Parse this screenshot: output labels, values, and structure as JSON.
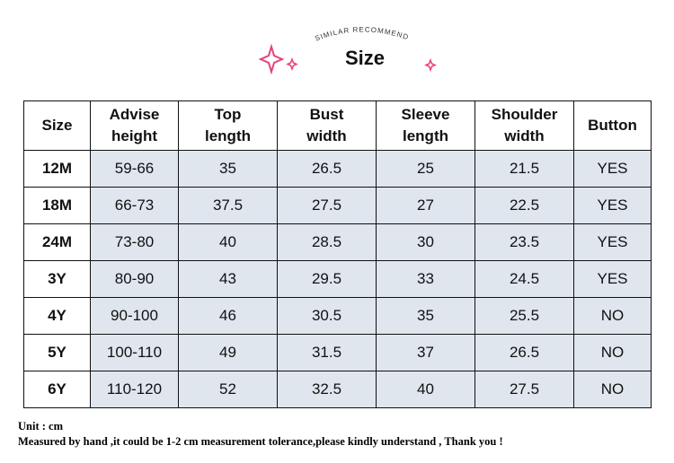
{
  "header": {
    "subtitle": "SIMILAR RECOMMEND",
    "title": "Size"
  },
  "table": {
    "columns": [
      "Size",
      "Advise\nheight",
      "Top\nlength",
      "Bust\nwidth",
      "Sleeve\nlength",
      "Shoulder\nwidth",
      "Button"
    ],
    "rows": [
      [
        "12M",
        "59-66",
        "35",
        "26.5",
        "25",
        "21.5",
        "YES"
      ],
      [
        "18M",
        "66-73",
        "37.5",
        "27.5",
        "27",
        "22.5",
        "YES"
      ],
      [
        "24M",
        "73-80",
        "40",
        "28.5",
        "30",
        "23.5",
        "YES"
      ],
      [
        "3Y",
        "80-90",
        "43",
        "29.5",
        "33",
        "24.5",
        "YES"
      ],
      [
        "4Y",
        "90-100",
        "46",
        "30.5",
        "35",
        "25.5",
        "NO"
      ],
      [
        "5Y",
        "100-110",
        "49",
        "31.5",
        "37",
        "26.5",
        "NO"
      ],
      [
        "6Y",
        "110-120",
        "52",
        "32.5",
        "40",
        "27.5",
        "NO"
      ]
    ]
  },
  "footer": {
    "unit": "Unit : cm",
    "note": "Measured by hand ,it could be 1-2 cm measurement tolerance,please kindly understand , Thank you !"
  }
}
